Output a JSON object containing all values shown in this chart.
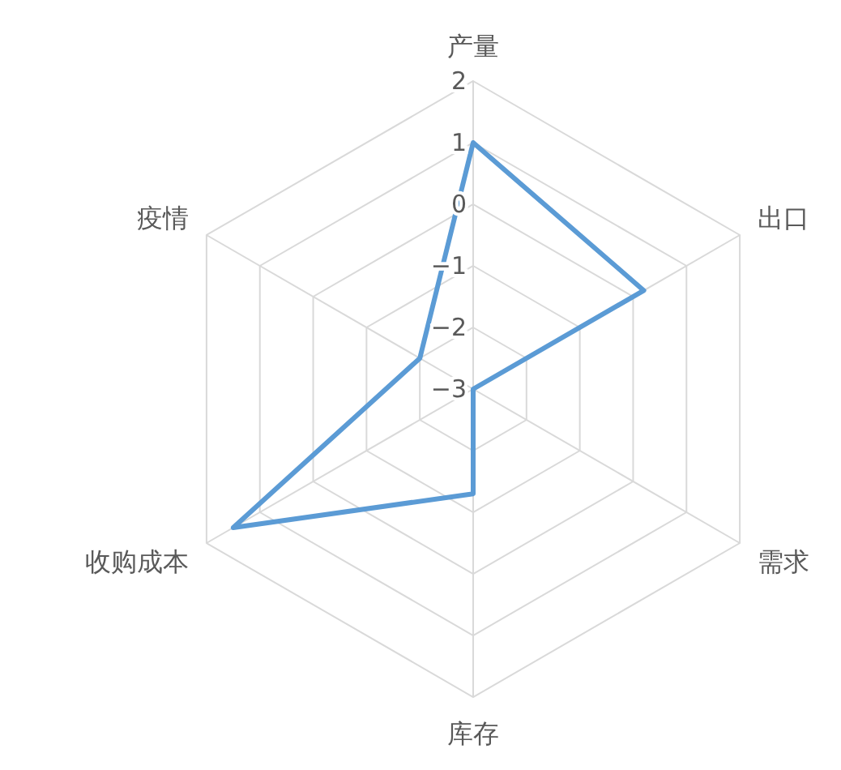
{
  "chart_data": {
    "type": "radar",
    "categories": [
      "产量",
      "出口",
      "需求",
      "库存",
      "收购成本",
      "疫情"
    ],
    "series": [
      {
        "color": "#5b9bd5",
        "values": [
          1,
          0.2,
          -3,
          -1.3,
          1.5,
          -2
        ]
      }
    ],
    "ylim": [
      -3,
      2
    ],
    "yticks": [
      -3,
      -2,
      -1,
      0,
      1,
      2
    ],
    "grid": true,
    "marker": "none",
    "line_style": "solid"
  }
}
